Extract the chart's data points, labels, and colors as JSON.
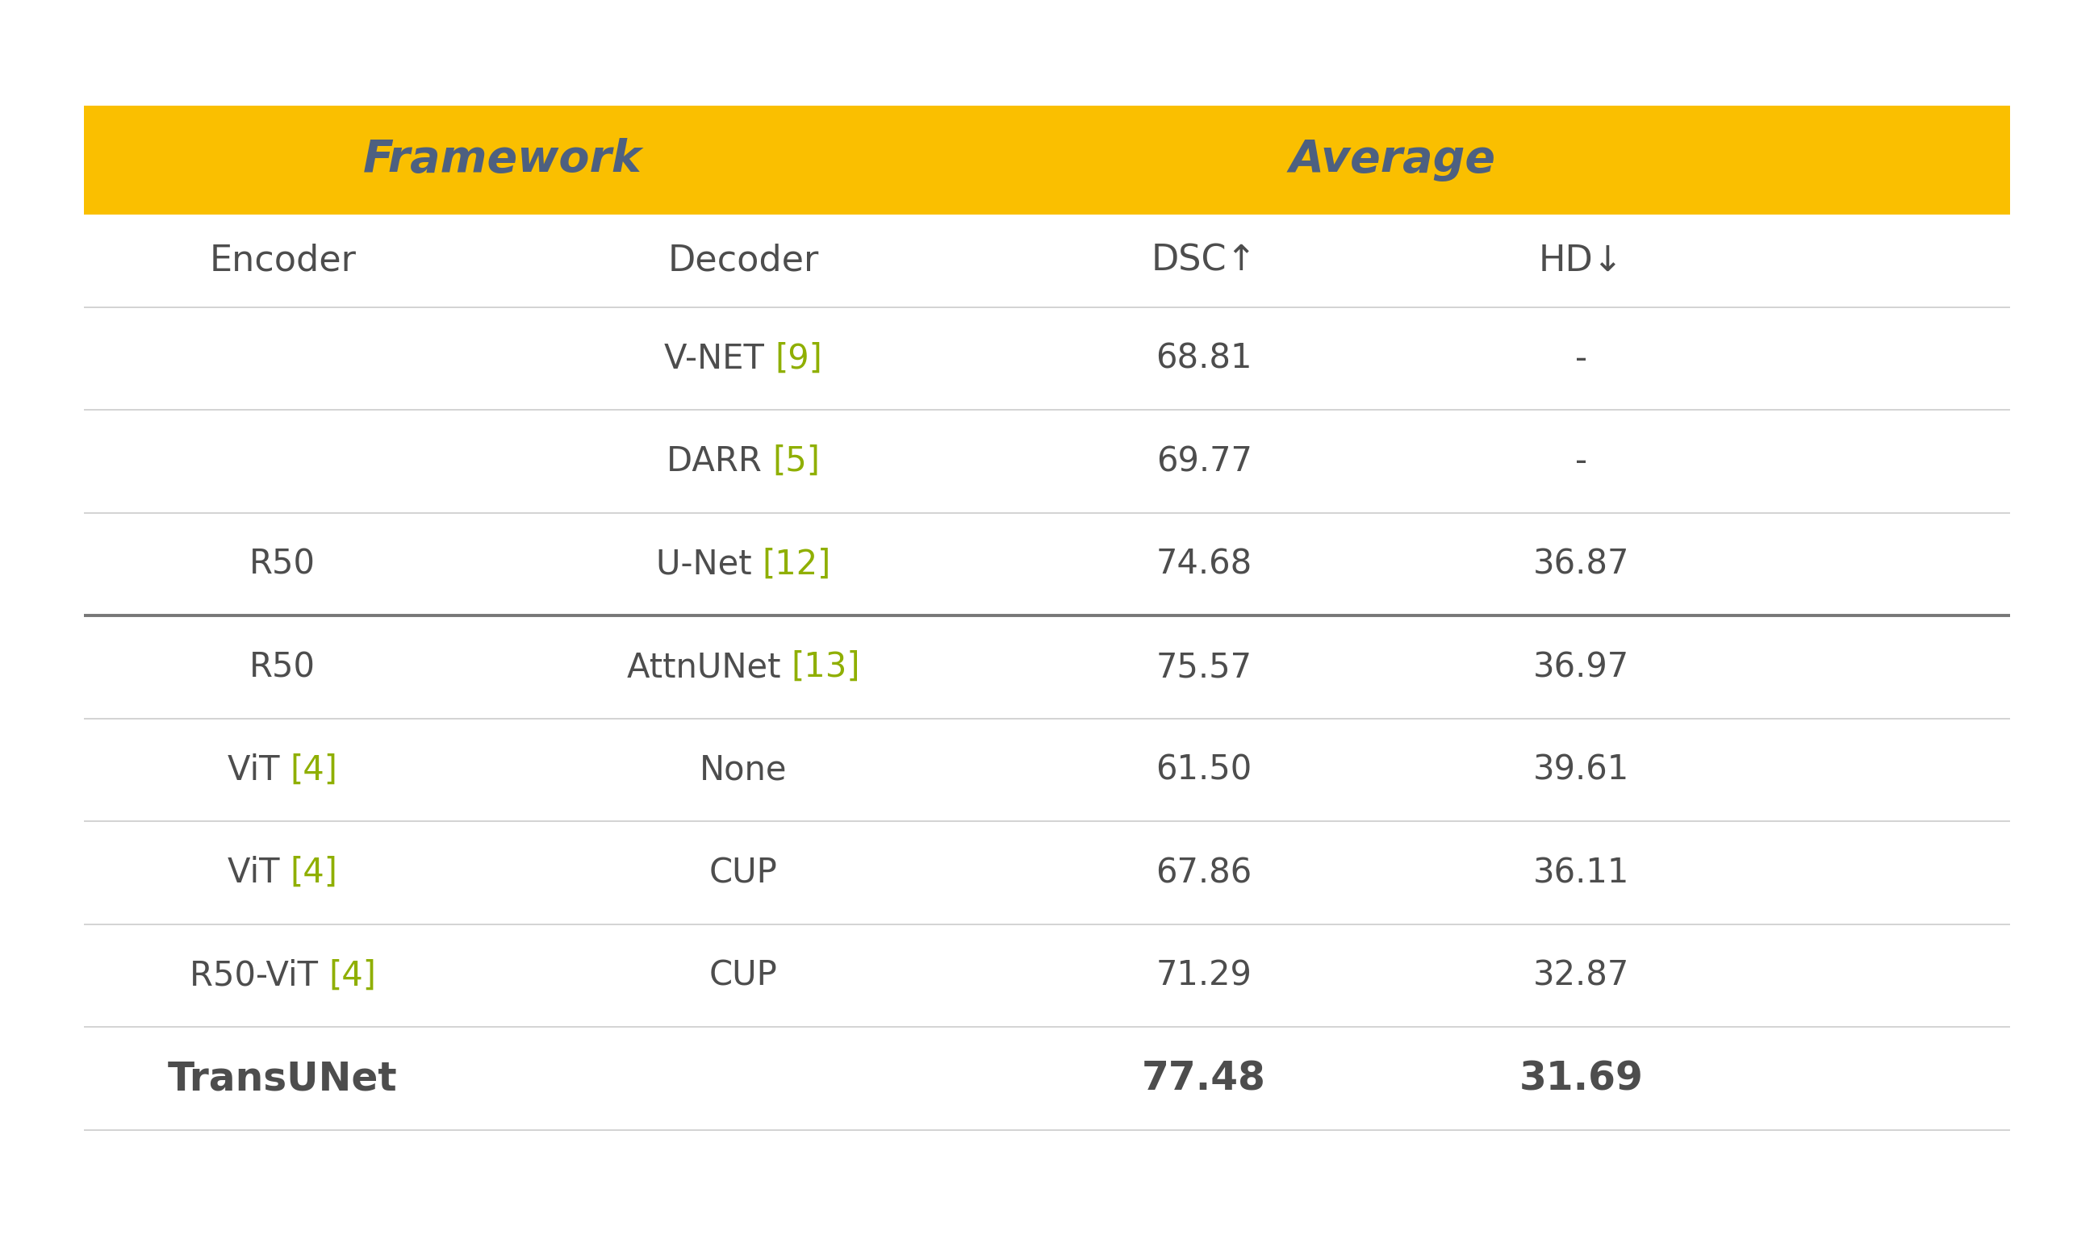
{
  "header_bg_color": "#FABF00",
  "header_text_color": "#4d6080",
  "body_text_color": "#4d4d4d",
  "ref_color": "#8faf00",
  "divider_color_light": "#cccccc",
  "divider_color_dark": "#777777",
  "bg_color": "#ffffff",
  "fig_width": 25.95,
  "fig_height": 15.36,
  "fw_label": "Framework",
  "avg_label": "Average",
  "col_enc_label": "Encoder",
  "col_dec_label": "Decoder",
  "col_dsc_label": "DSC↑",
  "col_hd_label": "HD↓",
  "rows": [
    {
      "encoder": "",
      "encoder_ref": "",
      "decoder": "V-NET ",
      "decoder_ref": "[9]",
      "dsc": "68.81",
      "hd": "-",
      "bold": false
    },
    {
      "encoder": "",
      "encoder_ref": "",
      "decoder": "DARR ",
      "decoder_ref": "[5]",
      "dsc": "69.77",
      "hd": "-",
      "bold": false
    },
    {
      "encoder": "R50",
      "encoder_ref": "",
      "decoder": "U-Net ",
      "decoder_ref": "[12]",
      "dsc": "74.68",
      "hd": "36.87",
      "bold": false
    },
    {
      "encoder": "R50",
      "encoder_ref": "",
      "decoder": "AttnUNet ",
      "decoder_ref": "[13]",
      "dsc": "75.57",
      "hd": "36.97",
      "bold": false
    },
    {
      "encoder": "ViT ",
      "encoder_ref": "[4]",
      "decoder": "None",
      "decoder_ref": "",
      "dsc": "61.50",
      "hd": "39.61",
      "bold": false
    },
    {
      "encoder": "ViT ",
      "encoder_ref": "[4]",
      "decoder": "CUP",
      "decoder_ref": "",
      "dsc": "67.86",
      "hd": "36.11",
      "bold": false
    },
    {
      "encoder": "R50-ViT ",
      "encoder_ref": "[4]",
      "decoder": "CUP",
      "decoder_ref": "",
      "dsc": "71.29",
      "hd": "32.87",
      "bold": false
    },
    {
      "encoder": "TransUNet",
      "encoder_ref": "",
      "decoder": "",
      "decoder_ref": "",
      "dsc": "77.48",
      "hd": "31.69",
      "bold": true
    }
  ],
  "thick_line_after_row": 3
}
